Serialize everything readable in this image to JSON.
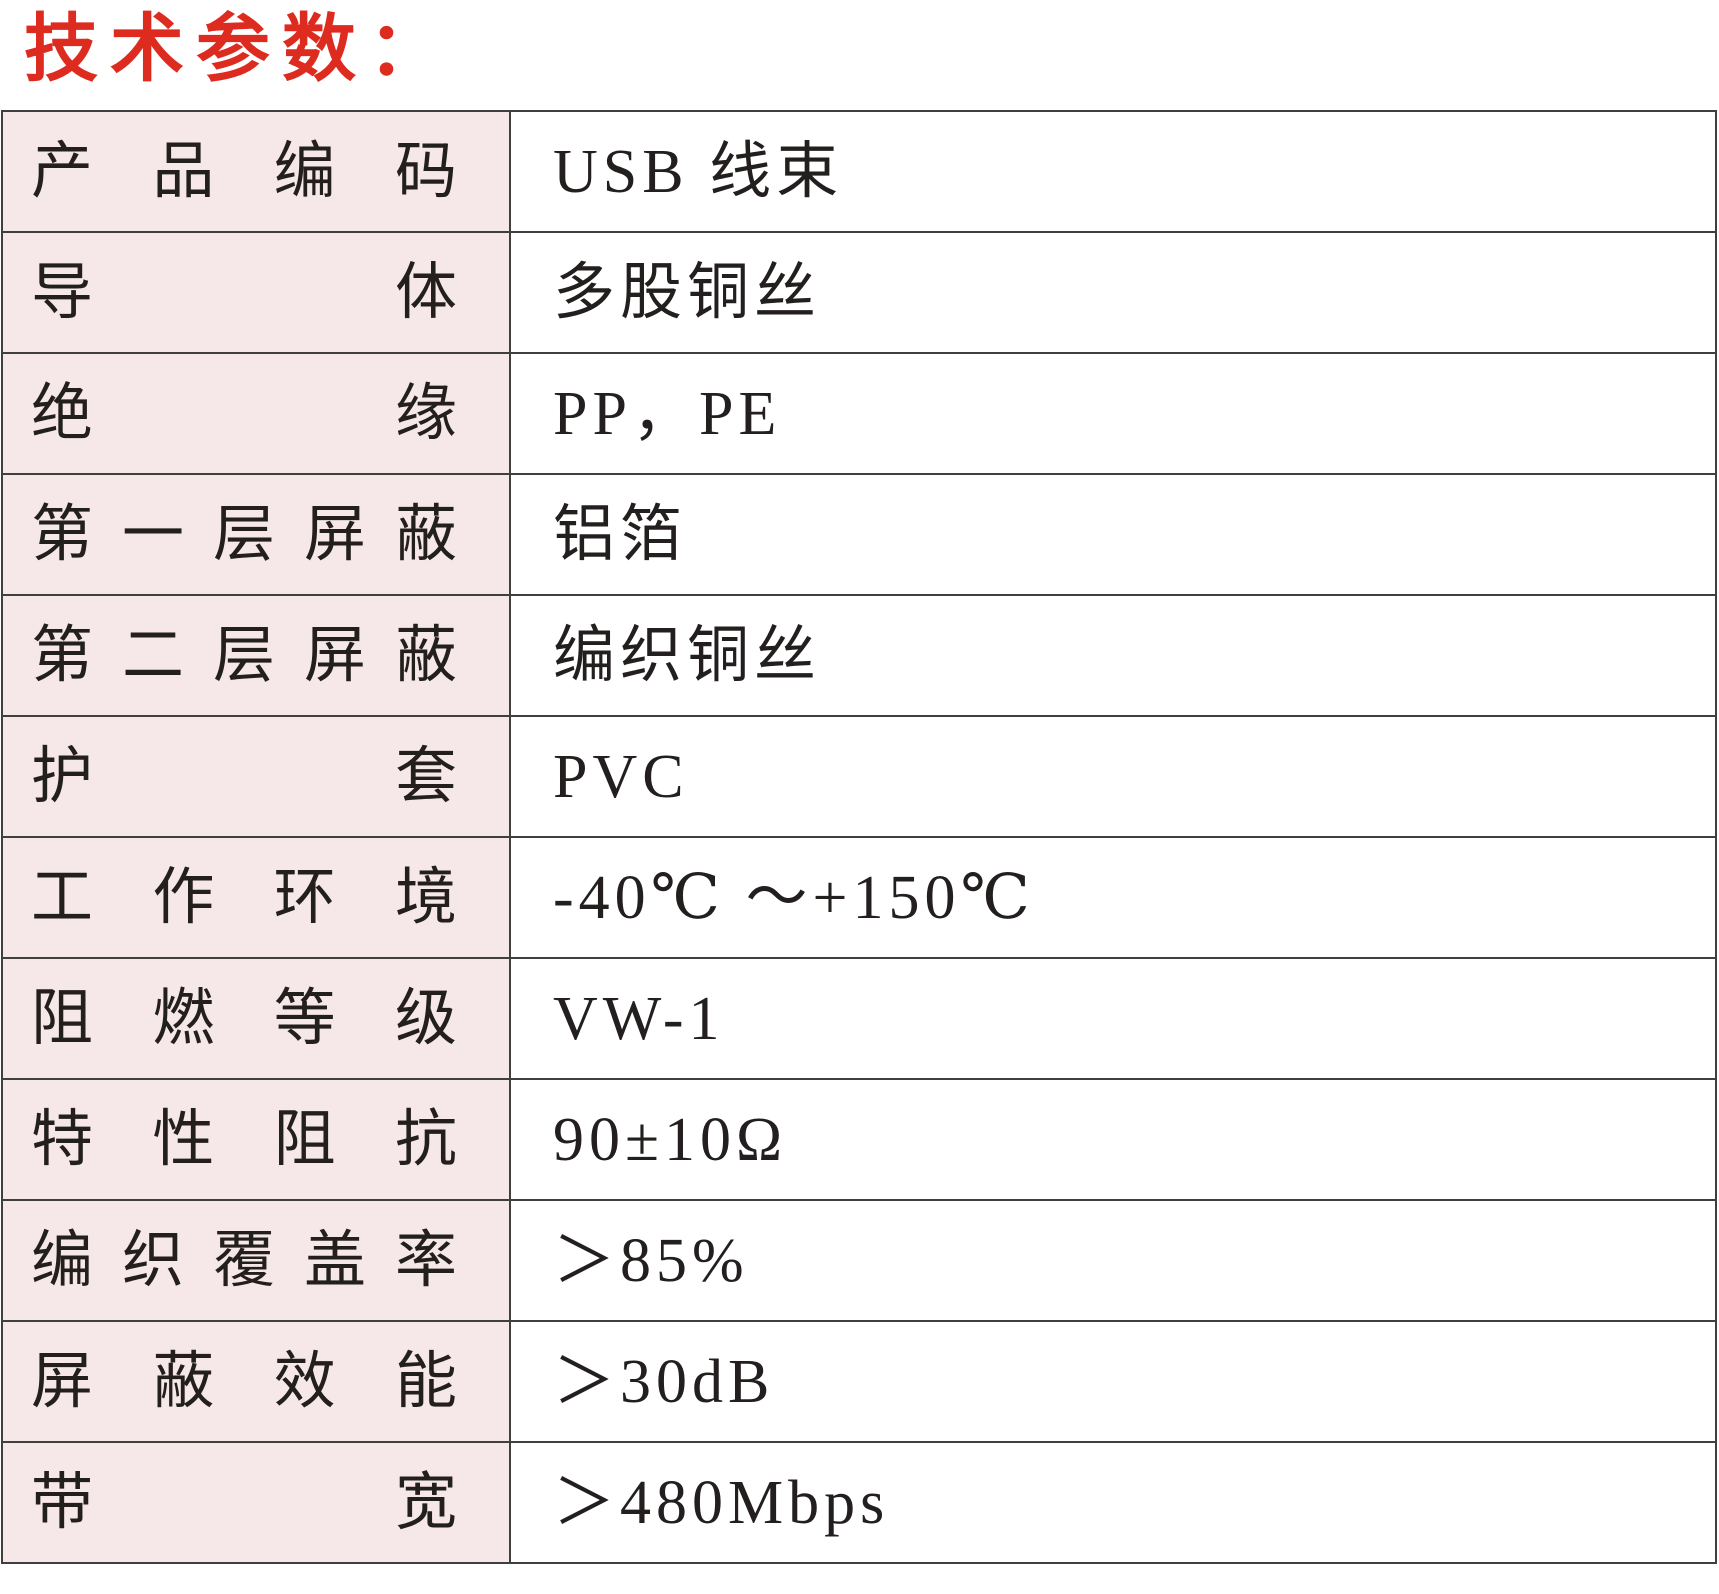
{
  "title": "技术参数：",
  "colors": {
    "title_red": "#dd2b1f",
    "label_background": "#f6e8e8",
    "border": "#3f3f3f",
    "text": "#231f1e"
  },
  "table": {
    "rows": [
      {
        "label": "产品编码",
        "value": "USB 线束"
      },
      {
        "label": "导体",
        "value": "多股铜丝"
      },
      {
        "label": "绝缘",
        "value": "PP，PE"
      },
      {
        "label": "第一层屏蔽",
        "value": "铝箔"
      },
      {
        "label": "第二层屏蔽",
        "value": "编织铜丝"
      },
      {
        "label": "护套",
        "value": "PVC"
      },
      {
        "label": "工作环境",
        "value": "-40℃ ～+150℃"
      },
      {
        "label": "阻燃等级",
        "value": "VW-1"
      },
      {
        "label": "特性阻抗",
        "value": "90±10Ω"
      },
      {
        "label": "编织覆盖率",
        "value": "＞85%"
      },
      {
        "label": "屏蔽效能",
        "value": "＞30dB"
      },
      {
        "label": "带宽",
        "value": "＞480Mbps"
      }
    ]
  }
}
